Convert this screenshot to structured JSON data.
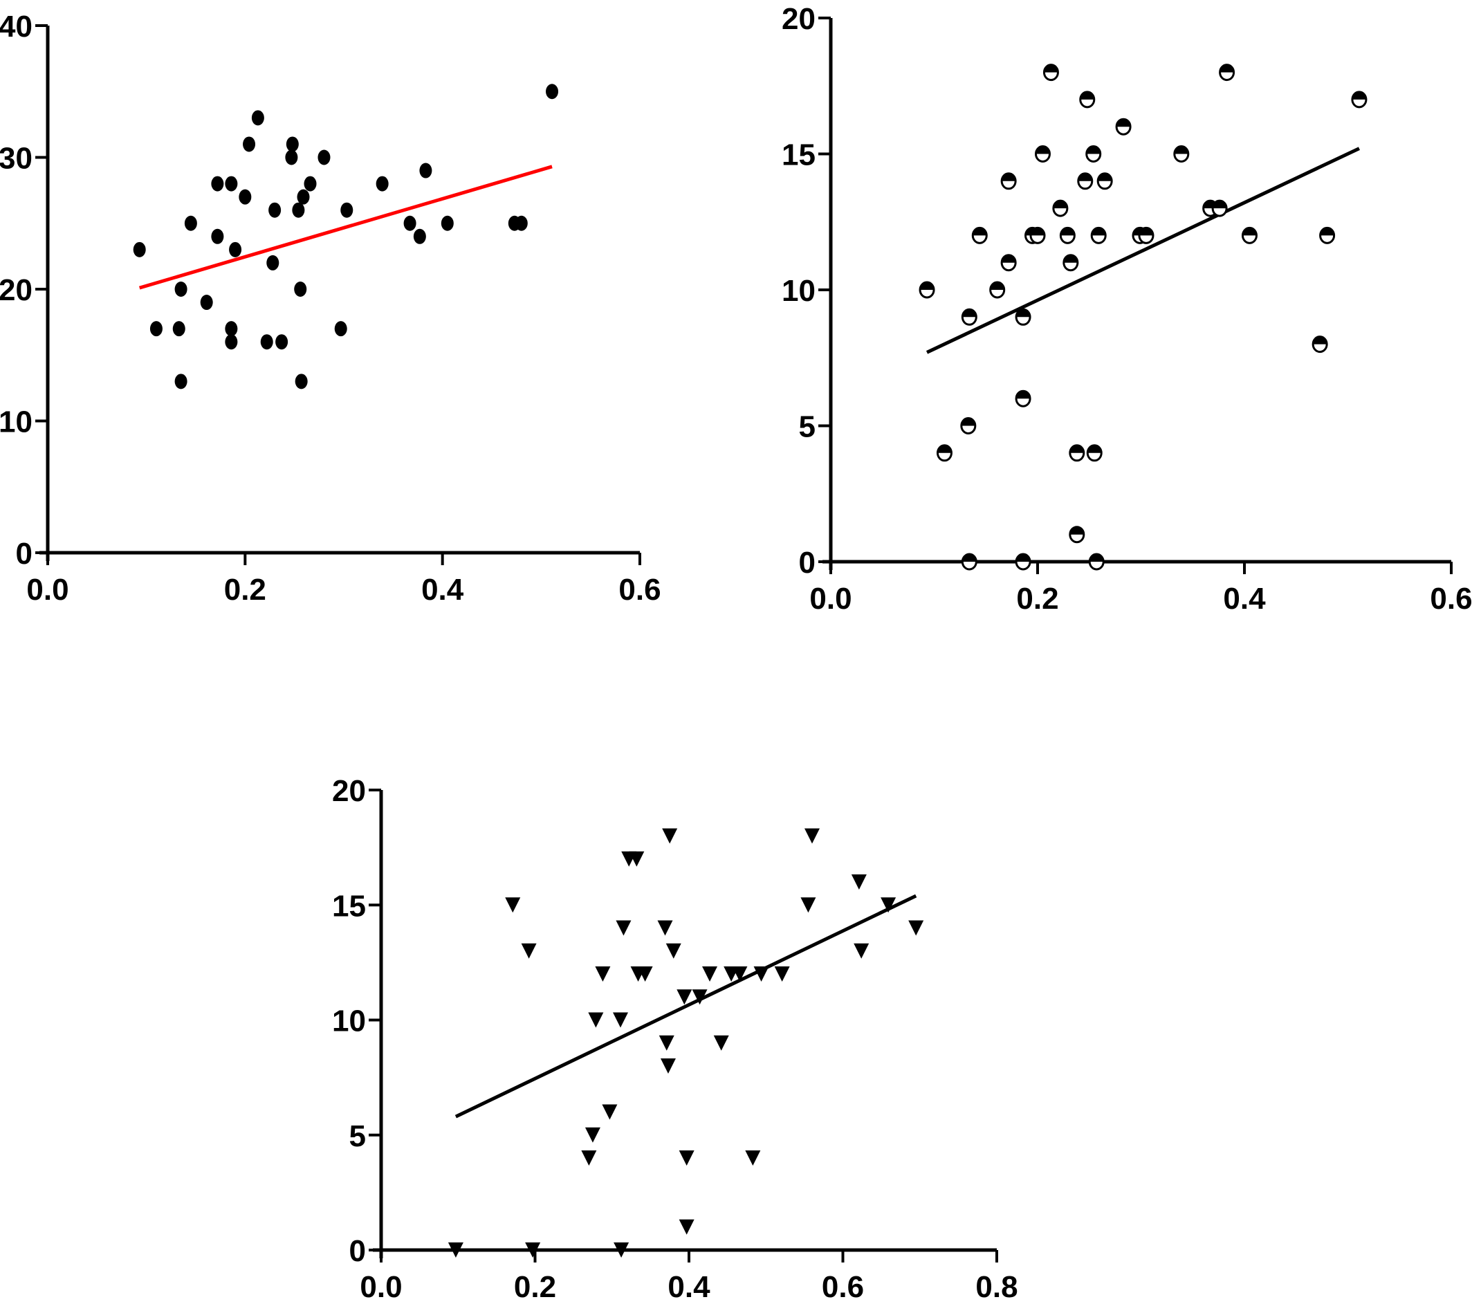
{
  "chart_data": [
    {
      "type": "scatter",
      "title": "",
      "xlabel": "",
      "ylabel": "",
      "xlim": [
        0,
        0.6
      ],
      "ylim": [
        0,
        40
      ],
      "xticks": [
        "0.0",
        "0.2",
        "0.4",
        "0.6"
      ],
      "yticks": [
        "0",
        "10",
        "20",
        "30",
        "40"
      ],
      "grid": false,
      "marker": "circle",
      "marker_color": "#000000",
      "fit_line": {
        "x": [
          0.093,
          0.511
        ],
        "y": [
          20.1,
          29.3
        ],
        "color": "#ff0000"
      },
      "points": [
        [
          0.093,
          23
        ],
        [
          0.11,
          17
        ],
        [
          0.133,
          17
        ],
        [
          0.135,
          20
        ],
        [
          0.135,
          13
        ],
        [
          0.145,
          25
        ],
        [
          0.161,
          19
        ],
        [
          0.172,
          24
        ],
        [
          0.172,
          28
        ],
        [
          0.186,
          28
        ],
        [
          0.186,
          17
        ],
        [
          0.186,
          16
        ],
        [
          0.19,
          23
        ],
        [
          0.2,
          27
        ],
        [
          0.204,
          31
        ],
        [
          0.213,
          33
        ],
        [
          0.222,
          16
        ],
        [
          0.228,
          22
        ],
        [
          0.23,
          26
        ],
        [
          0.237,
          16
        ],
        [
          0.247,
          30
        ],
        [
          0.248,
          31
        ],
        [
          0.254,
          26
        ],
        [
          0.256,
          20
        ],
        [
          0.257,
          13
        ],
        [
          0.259,
          27
        ],
        [
          0.266,
          28
        ],
        [
          0.28,
          30
        ],
        [
          0.297,
          17
        ],
        [
          0.303,
          26
        ],
        [
          0.339,
          28
        ],
        [
          0.367,
          25
        ],
        [
          0.377,
          24
        ],
        [
          0.383,
          29
        ],
        [
          0.405,
          25
        ],
        [
          0.473,
          25
        ],
        [
          0.48,
          25
        ],
        [
          0.511,
          35
        ]
      ]
    },
    {
      "type": "scatter",
      "title": "",
      "xlabel": "",
      "ylabel": "",
      "xlim": [
        0,
        0.6
      ],
      "ylim": [
        0,
        20
      ],
      "xticks": [
        "0.0",
        "0.2",
        "0.4",
        "0.6"
      ],
      "yticks": [
        "0",
        "5",
        "10",
        "15",
        "20"
      ],
      "grid": false,
      "marker": "half-filled-circle",
      "marker_color": "#000000",
      "fit_line": {
        "x": [
          0.093,
          0.511
        ],
        "y": [
          7.7,
          15.2
        ],
        "color": "#000000"
      },
      "points": [
        [
          0.093,
          10
        ],
        [
          0.11,
          4
        ],
        [
          0.133,
          5
        ],
        [
          0.134,
          9
        ],
        [
          0.134,
          0
        ],
        [
          0.144,
          12
        ],
        [
          0.161,
          10
        ],
        [
          0.172,
          11
        ],
        [
          0.172,
          14
        ],
        [
          0.186,
          9
        ],
        [
          0.186,
          6
        ],
        [
          0.186,
          0
        ],
        [
          0.195,
          12
        ],
        [
          0.2,
          12
        ],
        [
          0.205,
          15
        ],
        [
          0.213,
          18
        ],
        [
          0.222,
          13
        ],
        [
          0.229,
          12
        ],
        [
          0.232,
          11
        ],
        [
          0.238,
          4
        ],
        [
          0.238,
          1
        ],
        [
          0.246,
          14
        ],
        [
          0.248,
          17
        ],
        [
          0.254,
          15
        ],
        [
          0.255,
          4
        ],
        [
          0.257,
          0
        ],
        [
          0.259,
          12
        ],
        [
          0.265,
          14
        ],
        [
          0.283,
          16
        ],
        [
          0.299,
          12
        ],
        [
          0.305,
          12
        ],
        [
          0.339,
          15
        ],
        [
          0.367,
          13
        ],
        [
          0.376,
          13
        ],
        [
          0.383,
          18
        ],
        [
          0.405,
          12
        ],
        [
          0.473,
          8
        ],
        [
          0.48,
          12
        ],
        [
          0.511,
          17
        ]
      ]
    },
    {
      "type": "scatter",
      "title": "",
      "xlabel": "",
      "ylabel": "",
      "xlim": [
        0,
        0.8
      ],
      "ylim": [
        0,
        20
      ],
      "xticks": [
        "0.0",
        "0.2",
        "0.4",
        "0.6",
        "0.8"
      ],
      "yticks": [
        "0",
        "5",
        "10",
        "15",
        "20"
      ],
      "grid": false,
      "marker": "triangle-down",
      "marker_color": "#000000",
      "fit_line": {
        "x": [
          0.097,
          0.695
        ],
        "y": [
          5.8,
          15.4
        ],
        "color": "#000000"
      },
      "points": [
        [
          0.097,
          0
        ],
        [
          0.171,
          15
        ],
        [
          0.192,
          13
        ],
        [
          0.197,
          0
        ],
        [
          0.27,
          4
        ],
        [
          0.275,
          5
        ],
        [
          0.279,
          10
        ],
        [
          0.288,
          12
        ],
        [
          0.297,
          6
        ],
        [
          0.311,
          10
        ],
        [
          0.312,
          0
        ],
        [
          0.315,
          14
        ],
        [
          0.322,
          17
        ],
        [
          0.332,
          17
        ],
        [
          0.334,
          12
        ],
        [
          0.343,
          12
        ],
        [
          0.369,
          14
        ],
        [
          0.371,
          9
        ],
        [
          0.373,
          8
        ],
        [
          0.375,
          18
        ],
        [
          0.38,
          13
        ],
        [
          0.394,
          11
        ],
        [
          0.397,
          1
        ],
        [
          0.397,
          4
        ],
        [
          0.414,
          11
        ],
        [
          0.427,
          12
        ],
        [
          0.442,
          9
        ],
        [
          0.455,
          12
        ],
        [
          0.466,
          12
        ],
        [
          0.483,
          4
        ],
        [
          0.494,
          12
        ],
        [
          0.521,
          12
        ],
        [
          0.555,
          15
        ],
        [
          0.56,
          18
        ],
        [
          0.621,
          16
        ],
        [
          0.624,
          13
        ],
        [
          0.659,
          15
        ],
        [
          0.695,
          14
        ]
      ]
    }
  ]
}
